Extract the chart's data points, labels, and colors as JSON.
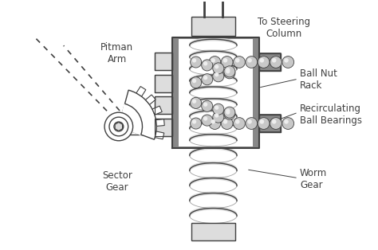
{
  "bg_color": "#ffffff",
  "line_color": "#404040",
  "gray_dark": "#888888",
  "gray_light": "#dddddd",
  "gray_mid": "#cccccc",
  "ball_color": "#c8c8c8",
  "ball_hi": "#eeeeee",
  "labels": {
    "pitman_arm": "Pitman\nArm",
    "sector_gear": "Sector\nGear",
    "ball_nut_rack": "Ball Nut\nRack",
    "recirculating": "Recirculating\nBall Bearings",
    "worm_gear": "Worm\nGear",
    "steering_column": "To Steering\nColumn"
  },
  "figsize": [
    4.74,
    3.14
  ],
  "dpi": 100
}
